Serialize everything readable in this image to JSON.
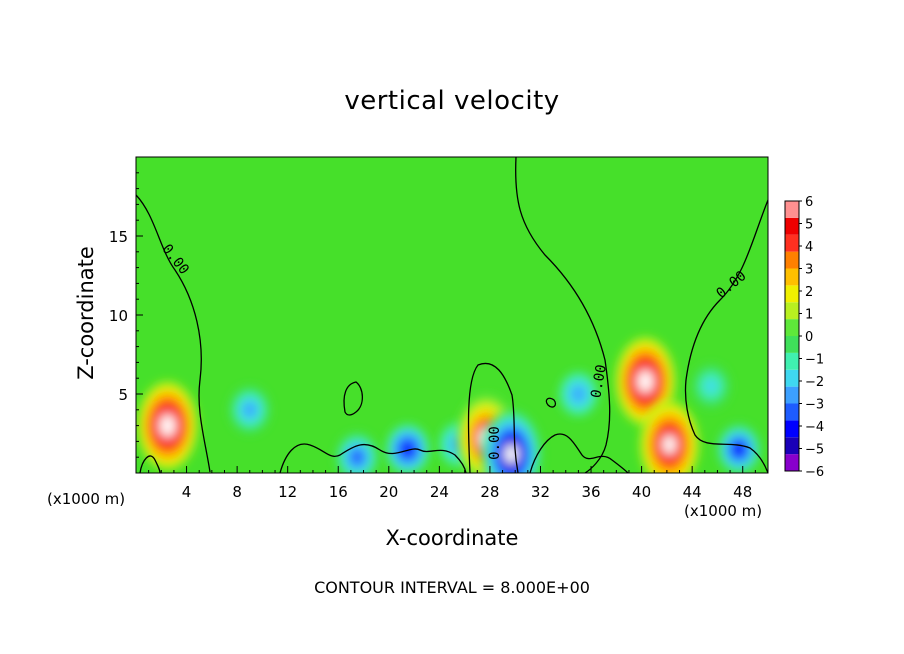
{
  "chart_data": {
    "type": "heatmap",
    "title": "vertical velocity",
    "xlabel": "X-coordinate",
    "ylabel": "Z-coordinate",
    "x_unit_label": "(x1000 m)",
    "xlim": [
      0,
      50
    ],
    "ylim": [
      0,
      20
    ],
    "x_ticks": [
      4,
      8,
      12,
      16,
      20,
      24,
      28,
      32,
      36,
      40,
      44,
      48
    ],
    "y_ticks": [
      5,
      10,
      15
    ],
    "colorbar": {
      "min": -6,
      "max": 6,
      "tick_labels": [
        "6",
        "5",
        "4",
        "3",
        "2",
        "1",
        "0",
        "−1",
        "−2",
        "−3",
        "−4",
        "−5",
        "−6"
      ],
      "colors": [
        "#8800cc",
        "#1a00b8",
        "#0000ff",
        "#1e5cff",
        "#3ca0ff",
        "#3fd8f0",
        "#40f0b0",
        "#3fe05a",
        "#5ee83a",
        "#b8f020",
        "#f0f000",
        "#ffc000",
        "#ff8000",
        "#ff3020",
        "#ee0000",
        "#ff9090"
      ]
    },
    "contour_label": "0.00",
    "contour_interval_text": "CONTOUR INTERVAL = 8.000E+00",
    "features": [
      {
        "x": 2.5,
        "z": 3.0,
        "w": 6.0
      },
      {
        "x": 9.0,
        "z": 4.0,
        "w": -3.0
      },
      {
        "x": 17.5,
        "z": 1.0,
        "w": -3.5
      },
      {
        "x": 21.5,
        "z": 1.5,
        "w": -3.8
      },
      {
        "x": 25.5,
        "z": 1.8,
        "w": -2.5
      },
      {
        "x": 27.7,
        "z": 2.2,
        "w": 5.0
      },
      {
        "x": 29.7,
        "z": 1.2,
        "w": -6.0
      },
      {
        "x": 35.0,
        "z": 5.0,
        "w": -2.5
      },
      {
        "x": 40.3,
        "z": 5.8,
        "w": 6.0
      },
      {
        "x": 42.2,
        "z": 1.8,
        "w": 5.5
      },
      {
        "x": 45.5,
        "z": 5.5,
        "w": -2.0
      },
      {
        "x": 47.7,
        "z": 1.5,
        "w": -4.5
      }
    ]
  }
}
